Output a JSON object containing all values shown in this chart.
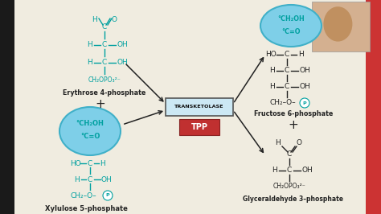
{
  "bg_color": "#f0ece0",
  "teal": "#00a0a0",
  "dark": "#222222",
  "red_box": "#c03030",
  "blue_fill": "#7ecfe8",
  "blue_edge": "#40b0c8",
  "erythrose_label": "Erythrose 4-phosphate",
  "xylulose_label": "Xylulose 5-phosphate",
  "fructose_label": "Fructose 6-phosphate",
  "glyceraldehyde_label": "Glyceraldehyde 3–phosphate",
  "transketolase_label": "TRANSKETOLASE",
  "tpp_label": "TPP",
  "figw": 4.74,
  "figh": 2.66,
  "dpi": 100
}
